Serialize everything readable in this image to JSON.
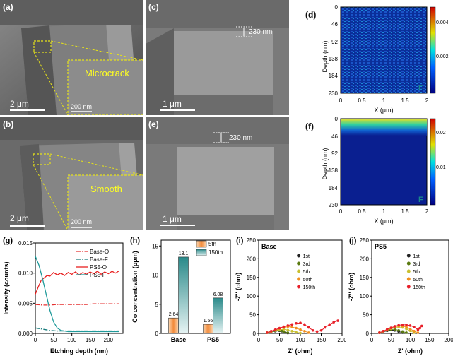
{
  "panels": {
    "a": {
      "label": "(a)",
      "callout": "Microcrack",
      "scale_main": "2 μm",
      "scale_inset": "200 nm"
    },
    "b": {
      "label": "(b)",
      "callout": "Smooth",
      "scale_main": "2 μm",
      "scale_inset": "200 nm"
    },
    "c": {
      "label": "(c)",
      "depth": "230 nm",
      "scale": "1 μm"
    },
    "e": {
      "label": "(e)",
      "depth": "230 nm",
      "scale": "1 μm"
    },
    "d": {
      "label": "(d)",
      "element": "F",
      "ylabel": "Depth (nm)",
      "xlabel": "X (μm)",
      "yticks": [
        "0",
        "46",
        "92",
        "138",
        "184",
        "230"
      ],
      "xticks": [
        "0",
        "0.5",
        "1",
        "1.5",
        "2"
      ],
      "colorbar": [
        "0.004",
        "0.002"
      ]
    },
    "f": {
      "label": "(f)",
      "element": "F",
      "ylabel": "Depth (nm)",
      "xlabel": "X (μm)",
      "yticks": [
        "0",
        "46",
        "92",
        "138",
        "184",
        "230"
      ],
      "xticks": [
        "0",
        "0.5",
        "1",
        "1.5",
        "2"
      ],
      "colorbar": [
        "0.02",
        "0.01"
      ]
    }
  },
  "chart_data": [
    {
      "id": "g",
      "label": "(g)",
      "type": "line",
      "xlabel": "Etching depth (nm)",
      "ylabel": "Intensity (counts)",
      "xlim": [
        0,
        240
      ],
      "ylim": [
        0,
        0.015
      ],
      "xticks": [
        "0",
        "50",
        "100",
        "150",
        "200"
      ],
      "yticks": [
        "0.000",
        "0.005",
        "0.010",
        "0.015"
      ],
      "series": [
        {
          "name": "Base-O",
          "color": "#e53030",
          "dash": "6,2,1.5,2",
          "x": [
            0,
            20,
            40,
            60,
            80,
            100,
            120,
            140,
            160,
            180,
            200,
            220,
            230
          ],
          "y": [
            0.0048,
            0.0047,
            0.0047,
            0.0048,
            0.0048,
            0.0048,
            0.0048,
            0.0048,
            0.0049,
            0.0049,
            0.0049,
            0.0049,
            0.0049
          ]
        },
        {
          "name": "Base-F",
          "color": "#167b7b",
          "dash": "6,2,1.5,2",
          "x": [
            0,
            20,
            40,
            60,
            80,
            100,
            150,
            200,
            230
          ],
          "y": [
            0.0009,
            0.0007,
            0.0005,
            0.0004,
            0.0004,
            0.0004,
            0.0004,
            0.0004,
            0.0004
          ]
        },
        {
          "name": "PS5-O",
          "color": "#e82020",
          "dash": "",
          "x": [
            0,
            8,
            16,
            24,
            32,
            40,
            50,
            60,
            70,
            80,
            90,
            100,
            110,
            120,
            130,
            140,
            150,
            160,
            170,
            180,
            190,
            200,
            210,
            220,
            230
          ],
          "y": [
            0.0065,
            0.0077,
            0.0088,
            0.0092,
            0.0096,
            0.0095,
            0.0101,
            0.0097,
            0.01,
            0.0096,
            0.0101,
            0.0098,
            0.0102,
            0.0097,
            0.0101,
            0.0098,
            0.0102,
            0.0099,
            0.0103,
            0.0098,
            0.0102,
            0.0099,
            0.0103,
            0.01,
            0.0104
          ]
        },
        {
          "name": "PS5-F",
          "color": "#1f9a9a",
          "dash": "",
          "x": [
            0,
            10,
            20,
            30,
            40,
            50,
            60,
            70,
            80,
            90,
            100,
            120,
            150,
            200,
            230
          ],
          "y": [
            0.0128,
            0.0113,
            0.009,
            0.0064,
            0.0038,
            0.0019,
            0.0009,
            0.0005,
            0.0004,
            0.0003,
            0.0003,
            0.0003,
            0.0003,
            0.0003,
            0.0003
          ]
        }
      ]
    },
    {
      "id": "h",
      "label": "(h)",
      "type": "bar",
      "ylabel": "Co concentration (ppm)",
      "categories": [
        "Base",
        "PS5"
      ],
      "ylim": [
        0,
        16
      ],
      "yticks": [
        "0",
        "5",
        "10",
        "15"
      ],
      "series": [
        {
          "name": "5th",
          "values": [
            2.64,
            1.56
          ],
          "labels": [
            "2.64",
            "1.56"
          ]
        },
        {
          "name": "150th",
          "values": [
            13.1,
            6.08
          ],
          "labels": [
            "13.1",
            "6.08"
          ]
        }
      ]
    },
    {
      "id": "i",
      "label": "(i)",
      "type": "scatter",
      "title": "Base",
      "xlabel": "Z' (ohm)",
      "ylabel": "-Z'' (ohm)",
      "xlim": [
        0,
        200
      ],
      "ylim": [
        0,
        250
      ],
      "xticks": [
        "0",
        "50",
        "100",
        "150",
        "200"
      ],
      "yticks": [
        "0",
        "50",
        "100",
        "150",
        "200",
        "250"
      ],
      "series": [
        {
          "name": "1st",
          "color": "#222222",
          "x": [
            20,
            30,
            40,
            50,
            55,
            60,
            70
          ],
          "y": [
            2,
            4,
            6,
            7,
            6,
            4,
            1
          ]
        },
        {
          "name": "3rd",
          "color": "#5a7a10",
          "x": [
            20,
            30,
            40,
            50,
            55,
            60,
            70
          ],
          "y": [
            2,
            4,
            7,
            8,
            7,
            5,
            2
          ]
        },
        {
          "name": "5th",
          "color": "#c8c030",
          "x": [
            20,
            30,
            40,
            50,
            60,
            70,
            80,
            90,
            100
          ],
          "y": [
            2,
            5,
            8,
            10,
            11,
            9,
            6,
            3,
            1
          ]
        },
        {
          "name": "50th",
          "color": "#f09020",
          "x": [
            20,
            30,
            40,
            50,
            60,
            70,
            80,
            90,
            100,
            110,
            120
          ],
          "y": [
            2,
            5,
            9,
            13,
            16,
            18,
            17,
            14,
            10,
            6,
            2
          ]
        },
        {
          "name": "150th",
          "color": "#e8202a",
          "x": [
            20,
            30,
            40,
            50,
            60,
            70,
            80,
            90,
            100,
            110,
            120,
            130,
            140,
            150,
            160,
            170,
            180,
            190
          ],
          "y": [
            2,
            6,
            10,
            14,
            18,
            21,
            24,
            27,
            28,
            24,
            16,
            8,
            5,
            8,
            16,
            24,
            30,
            34
          ]
        }
      ]
    },
    {
      "id": "j",
      "label": "(j)",
      "type": "scatter",
      "title": "PS5",
      "xlabel": "Z' (ohm)",
      "ylabel": "-Z'' (ohm)",
      "xlim": [
        0,
        200
      ],
      "ylim": [
        0,
        250
      ],
      "xticks": [
        "0",
        "50",
        "100",
        "150",
        "200"
      ],
      "yticks": [
        "0",
        "50",
        "100",
        "150",
        "200",
        "250"
      ],
      "series": [
        {
          "name": "1st",
          "color": "#222222",
          "x": [
            20,
            30,
            40,
            50,
            60,
            70,
            80
          ],
          "y": [
            2,
            4,
            7,
            9,
            8,
            5,
            2
          ]
        },
        {
          "name": "3rd",
          "color": "#5a7a10",
          "x": [
            20,
            30,
            40,
            50,
            60,
            70,
            80,
            90
          ],
          "y": [
            2,
            5,
            8,
            11,
            11,
            8,
            5,
            2
          ]
        },
        {
          "name": "5th",
          "color": "#c8c030",
          "x": [
            20,
            30,
            40,
            50,
            60,
            70,
            80,
            90,
            100,
            110
          ],
          "y": [
            2,
            5,
            9,
            13,
            16,
            17,
            16,
            12,
            7,
            2
          ]
        },
        {
          "name": "50th",
          "color": "#f09020",
          "x": [
            20,
            30,
            40,
            50,
            60,
            70,
            80,
            90,
            100,
            110,
            120
          ],
          "y": [
            2,
            6,
            10,
            14,
            18,
            20,
            20,
            17,
            12,
            6,
            2
          ]
        },
        {
          "name": "150th",
          "color": "#e8202a",
          "x": [
            20,
            30,
            40,
            50,
            60,
            70,
            80,
            90,
            100,
            110,
            120,
            125,
            130
          ],
          "y": [
            2,
            6,
            11,
            15,
            19,
            22,
            23,
            23,
            21,
            17,
            10,
            14,
            20
          ]
        }
      ]
    }
  ]
}
